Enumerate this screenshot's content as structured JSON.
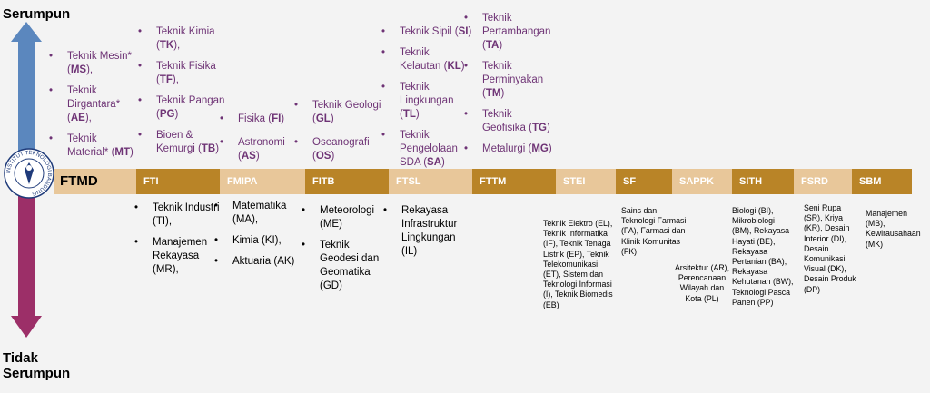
{
  "axis": {
    "top_label": "Serumpun",
    "bottom_label_1": "Tidak",
    "bottom_label_2": "Serumpun",
    "top_color": "#5b87be",
    "bottom_color": "#9c2f68"
  },
  "logo": {
    "name": "itb-seal-icon",
    "text": "INSTITUT TEKNOLOGI BANDUNG"
  },
  "faculties": [
    {
      "code": "FTMD"
    },
    {
      "code": "FTI"
    },
    {
      "code": "FMIPA"
    },
    {
      "code": "FITB"
    },
    {
      "code": "FTSL"
    },
    {
      "code": "FTTM"
    },
    {
      "code": "STEI"
    },
    {
      "code": "SF"
    },
    {
      "code": "SAPPK"
    },
    {
      "code": "SITH"
    },
    {
      "code": "FSRD"
    },
    {
      "code": "SBM"
    }
  ],
  "related": {
    "ftmd": [
      {
        "label": "Teknik Mesin*",
        "code": "MS",
        "suffix": "),"
      },
      {
        "label": "Teknik Dirgantara*",
        "code": "AE",
        "suffix": "),"
      },
      {
        "label": "Teknik Material*",
        "code": "MT",
        "suffix": ")"
      }
    ],
    "fti": [
      {
        "label": "Teknik Kimia",
        "code": "TK",
        "suffix": "),"
      },
      {
        "label": "Teknik Fisika",
        "code": "TF",
        "suffix": "),"
      },
      {
        "label": "Teknik Pangan",
        "code": "PG",
        "suffix": ")"
      },
      {
        "label": "Bioen & Kemurgi",
        "code": "TB",
        "suffix": ")"
      }
    ],
    "fmipa": [
      {
        "label": "Fisika",
        "code": "FI",
        "suffix": ")"
      },
      {
        "label": "Astronomi",
        "code": "AS",
        "suffix": ")"
      }
    ],
    "fitb": [
      {
        "label": "Teknik Geologi",
        "code": "GL",
        "suffix": ")"
      },
      {
        "label": "Oseanografi",
        "code": "OS",
        "suffix": ")"
      }
    ],
    "ftsl": [
      {
        "label": "Teknik Sipil",
        "code": "SI",
        "suffix": ")"
      },
      {
        "label": "Teknik Kelautan",
        "code": "KL",
        "suffix": ")"
      },
      {
        "label": "Teknik Lingkungan",
        "code": "TL",
        "suffix": ")"
      },
      {
        "label": "Teknik Pengelolaan SDA",
        "code": "SA",
        "suffix": ")"
      }
    ],
    "fttm": [
      {
        "label": "Teknik Pertambangan",
        "code": "TA",
        "suffix": ")"
      },
      {
        "label": "Teknik Perminyakan",
        "code": "TM",
        "suffix": ")"
      },
      {
        "label": "Teknik Geofisika",
        "code": "TG",
        "suffix": ")"
      },
      {
        "label": "Metalurgi",
        "code": "MG",
        "suffix": ")"
      }
    ]
  },
  "unrelated": {
    "fti": [
      "Teknik Industri (TI),",
      "Manajemen Rekayasa (MR),"
    ],
    "fmipa": [
      "Matematika (MA),",
      "Kimia (KI),",
      "Aktuaria (AK)"
    ],
    "fitb": [
      "Meteorologi (ME)",
      "Teknik Geodesi dan Geomatika (GD)"
    ],
    "ftsl": [
      "Rekayasa Infrastruktur Lingkungan (IL)"
    ],
    "stei": "Teknik Elektro (EL), Teknik Informatika (IF), Teknik Tenaga Listrik (EP), Teknik Telekomunikasi (ET), Sistem dan Teknologi Informasi (I), Teknik Biomedis (EB)",
    "sf": "Sains dan Teknologi Farmasi (FA), Farmasi dan Klinik Komunitas (FK)",
    "sappk": "Arsitektur (AR), Perencanaan Wilayah dan Kota (PL)",
    "sith": "Biologi (BI), Mikrobiologi (BM), Rekayasa Hayati (BE), Rekayasa Pertanian (BA), Rekayasa Kehutanan (BW), Teknologi Pasca Panen (PP)",
    "fsrd": "Seni Rupa (SR), Kriya (KR), Desain Interior (DI), Desain Komunikasi Visual (DK), Desain Produk (DP)",
    "sbm": "Manajemen (MB), Kewirausahaan (MK)"
  }
}
